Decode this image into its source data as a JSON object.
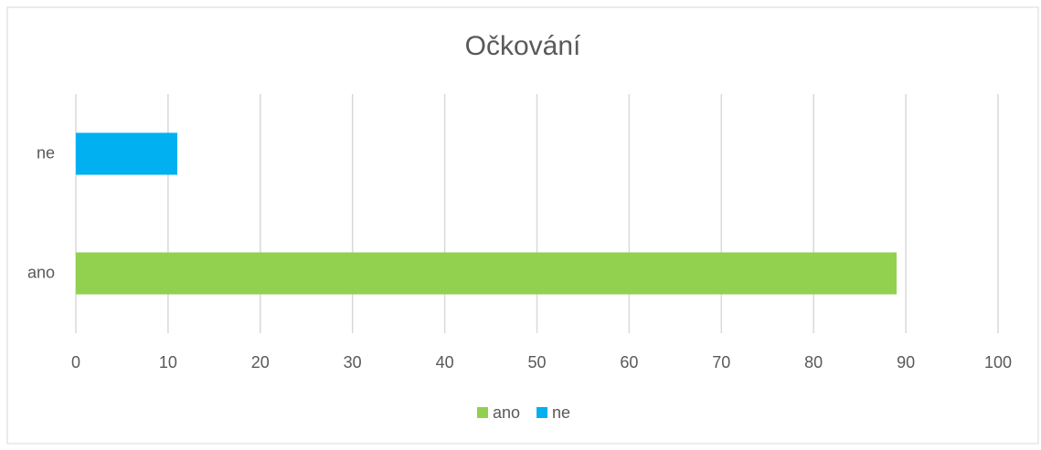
{
  "chart_data": {
    "type": "bar",
    "orientation": "horizontal",
    "title": "Očkování",
    "categories": [
      "ano",
      "ne"
    ],
    "series": [
      {
        "name": "ano",
        "color": "#92d050",
        "values": [
          89,
          null
        ]
      },
      {
        "name": "ne",
        "color": "#00b0f0",
        "values": [
          null,
          11
        ]
      }
    ],
    "xlim": [
      0,
      100
    ],
    "xticks": [
      0,
      10,
      20,
      30,
      40,
      50,
      60,
      70,
      80,
      90,
      100
    ],
    "grid": true,
    "legend": "bottom"
  }
}
